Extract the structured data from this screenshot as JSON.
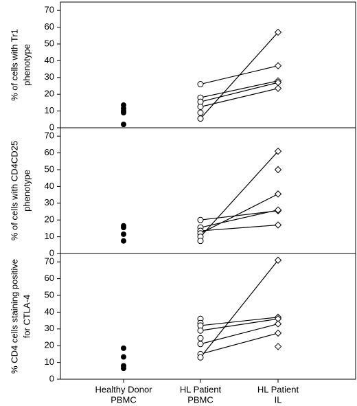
{
  "chart_data": [
    {
      "type": "paired-dot",
      "ylabel": [
        "% of cells with Tr1",
        "phenotype"
      ],
      "categories": [
        [
          "Healthy Donor",
          "PBMC"
        ],
        [
          "HL Patient",
          "PBMC"
        ],
        [
          "HL Patient",
          "IL"
        ]
      ],
      "ylim": [
        0,
        75
      ],
      "yticks": [
        0,
        10,
        20,
        30,
        40,
        50,
        60,
        70
      ],
      "healthy": [
        13.5,
        11.5,
        10,
        9,
        2
      ],
      "pbmc": [
        26,
        18,
        15.5,
        12.5,
        9,
        5.5
      ],
      "il": [
        37,
        28,
        27,
        23.5,
        null,
        57
      ]
    },
    {
      "type": "paired-dot",
      "ylabel": [
        "% of cells with CD4CD25",
        "phenotype"
      ],
      "categories": [
        [
          "Healthy Donor",
          "PBMC"
        ],
        [
          "HL Patient",
          "PBMC"
        ],
        [
          "HL Patient",
          "IL"
        ]
      ],
      "ylim": [
        0,
        75
      ],
      "yticks": [
        0,
        10,
        20,
        30,
        40,
        50,
        60,
        70
      ],
      "healthy": [
        16.5,
        15.5,
        11.5,
        7.5
      ],
      "pbmc": [
        20,
        15.5,
        13.5,
        12,
        10,
        7.5,
        null
      ],
      "il": [
        25.5,
        26,
        17,
        35.5,
        61,
        null,
        50
      ]
    },
    {
      "type": "paired-dot",
      "ylabel": [
        "% CD4 cells staining positive",
        "for CTLA-4"
      ],
      "categories": [
        [
          "Healthy Donor",
          "PBMC"
        ],
        [
          "HL Patient",
          "PBMC"
        ],
        [
          "HL Patient",
          "IL"
        ]
      ],
      "ylim": [
        0,
        75
      ],
      "yticks": [
        0,
        10,
        20,
        30,
        40,
        50,
        60,
        70
      ],
      "healthy": [
        18.5,
        13.3,
        8,
        6.5
      ],
      "pbmc": [
        36,
        33.5,
        32,
        29,
        24.5,
        21,
        15,
        13,
        null
      ],
      "il": [
        null,
        null,
        37,
        36,
        null,
        33,
        27.5,
        71,
        19.5
      ]
    }
  ]
}
